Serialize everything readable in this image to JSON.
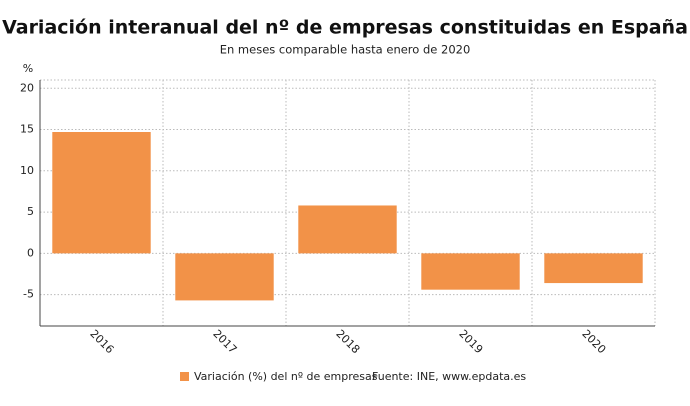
{
  "chart_data": {
    "type": "bar",
    "title": "Variación interanual del nº de empresas constituidas en España",
    "subtitle": "En meses comparable hasta enero de 2020",
    "y_label": "%",
    "categories": [
      "2016",
      "2017",
      "2018",
      "2019",
      "2020"
    ],
    "series": [
      {
        "name": "Variación (%) del nº de empresas",
        "color": "#f29248",
        "values": [
          14.7,
          -5.7,
          5.8,
          -4.4,
          -3.6
        ]
      }
    ],
    "ylim": [
      -8.8,
      21
    ],
    "yticks": [
      -5,
      0,
      5,
      10,
      15,
      20
    ],
    "grid": true,
    "source": "Fuente: INE, www.epdata.es"
  }
}
